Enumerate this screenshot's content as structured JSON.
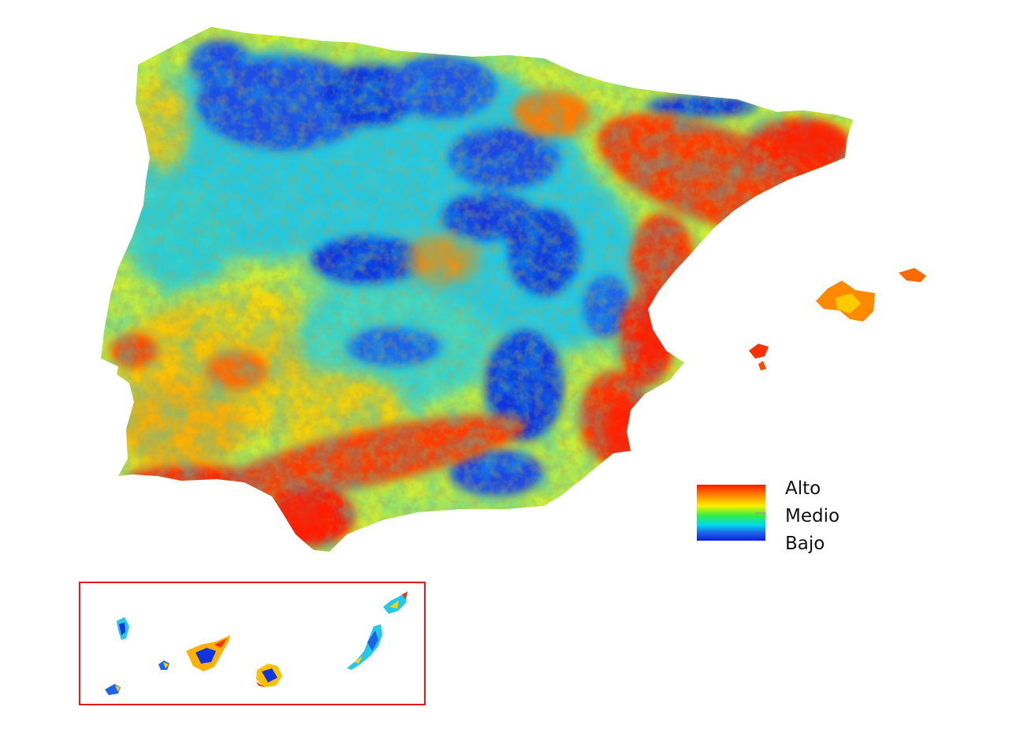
{
  "legend": {
    "high_label": "Alto",
    "mid_label": "Medio",
    "low_label": "Bajo"
  },
  "colors": {
    "scale_high": "#ff1a00",
    "scale_orange": "#ff8c00",
    "scale_yellow": "#ffee00",
    "scale_green": "#33ee44",
    "scale_cyan": "#00d8ee",
    "scale_blue": "#1f63e8",
    "scale_low": "#0a1ee0",
    "inset_frame": "#e01b1b"
  },
  "regions": [
    "iberian-peninsula",
    "balearic-islands",
    "canary-islands"
  ]
}
